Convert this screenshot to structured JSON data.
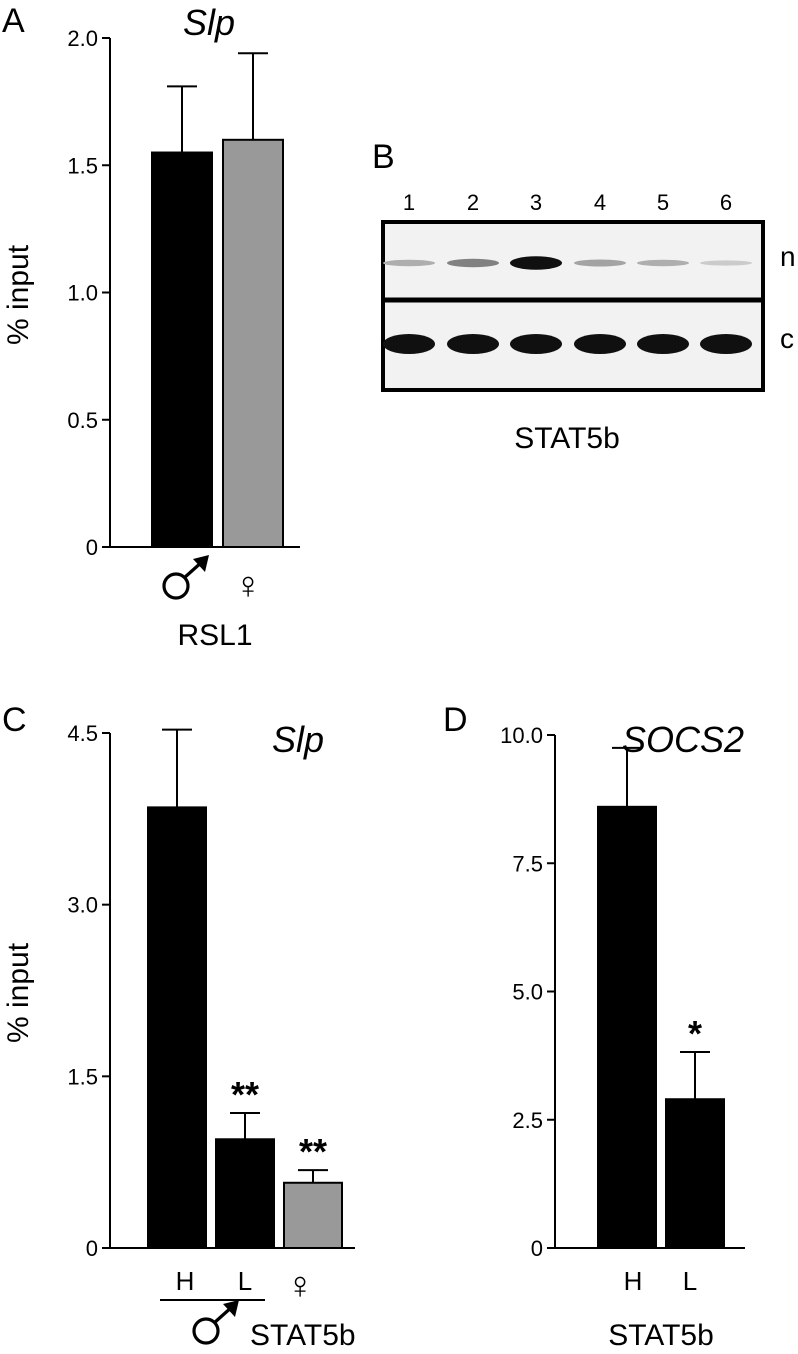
{
  "panels": {
    "A": {
      "label": "A",
      "chart_data": {
        "type": "bar",
        "title": "Slp",
        "ylabel": "% input",
        "ylim": [
          0,
          2.0
        ],
        "yticks": [
          "0",
          "0.5",
          "1.0",
          "1.5",
          "2.0"
        ],
        "yticks_values": [
          0,
          0.5,
          1.0,
          1.5,
          2.0
        ],
        "categories": [
          "♂",
          "♀"
        ],
        "values": [
          1.55,
          1.6
        ],
        "errors": [
          0.26,
          0.34
        ],
        "colors": [
          "#000000",
          "#999999"
        ],
        "group_label": "RSL1"
      }
    },
    "B": {
      "label": "B",
      "lanes": [
        "1",
        "2",
        "3",
        "4",
        "5",
        "6"
      ],
      "rows": [
        {
          "label": "n",
          "intensity": [
            0.25,
            0.45,
            0.95,
            0.3,
            0.25,
            0.12
          ]
        },
        {
          "label": "c",
          "intensity": [
            0.95,
            0.95,
            0.95,
            0.95,
            0.95,
            0.95
          ]
        }
      ],
      "caption": "STAT5b"
    },
    "C": {
      "label": "C",
      "chart_data": {
        "type": "bar",
        "title": "Slp",
        "ylabel": "% input",
        "ylim": [
          0,
          4.5
        ],
        "yticks": [
          "0",
          "1.5",
          "3.0",
          "4.5"
        ],
        "yticks_values": [
          0,
          1.5,
          3.0,
          4.5
        ],
        "categories": [
          "H",
          "L",
          "♀"
        ],
        "values": [
          3.85,
          0.95,
          0.57
        ],
        "errors": [
          0.68,
          0.23,
          0.11
        ],
        "colors": [
          "#000000",
          "#000000",
          "#999999"
        ],
        "significance": [
          "",
          "**",
          "**"
        ],
        "male_symbol": "♂",
        "group_label": "STAT5b"
      }
    },
    "D": {
      "label": "D",
      "chart_data": {
        "type": "bar",
        "title": "SOCS2",
        "ylim": [
          0,
          10.0
        ],
        "yticks": [
          "0",
          "2.5",
          "5.0",
          "7.5",
          "10.0"
        ],
        "yticks_values": [
          0,
          2.5,
          5.0,
          7.5,
          10.0
        ],
        "categories": [
          "H",
          "L"
        ],
        "values": [
          8.6,
          2.9
        ],
        "errors": [
          1.15,
          0.92
        ],
        "colors": [
          "#000000",
          "#000000"
        ],
        "significance": [
          "",
          "*"
        ],
        "group_label": "STAT5b"
      }
    }
  }
}
